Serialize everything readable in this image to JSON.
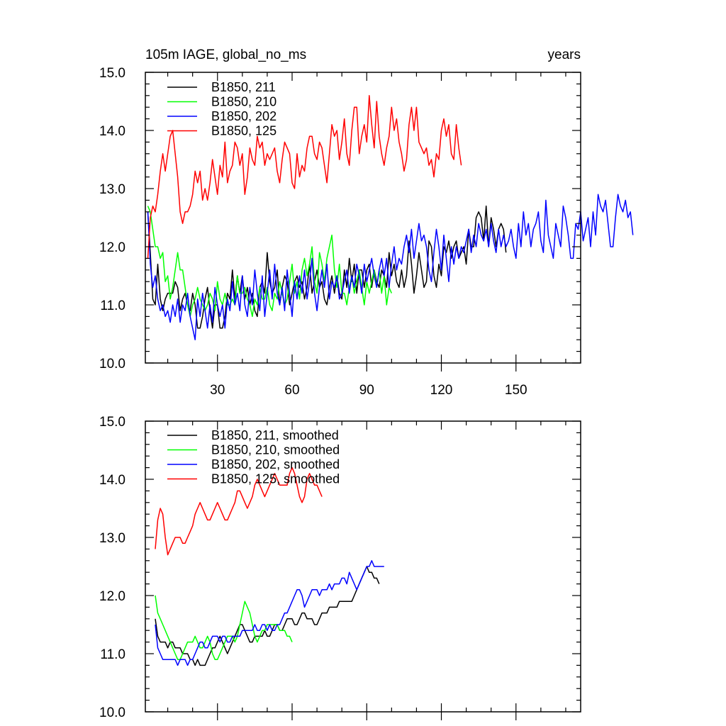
{
  "chart_data": [
    {
      "type": "line",
      "title": "105m IAGE, global_no_ms",
      "right_title": "years",
      "xlabel": "",
      "ylabel": "",
      "xlim": [
        1,
        176
      ],
      "ylim": [
        10.0,
        15.0
      ],
      "x_ticks": [
        30,
        60,
        90,
        120,
        150
      ],
      "y_ticks": [
        "10.0",
        "11.0",
        "12.0",
        "13.0",
        "14.0",
        "15.0"
      ],
      "legend_position": "top-left",
      "grid": false,
      "series": [
        {
          "name": "B1850, 211",
          "color": "#000000",
          "x_start": 2,
          "values": [
            12.6,
            11.9,
            11.1,
            11.0,
            11.7,
            11.1,
            10.9,
            11.1,
            11.2,
            11.2,
            11.2,
            11.4,
            11.3,
            10.9,
            11.1,
            11.2,
            11.0,
            10.9,
            11.2,
            11.0,
            10.6,
            10.6,
            10.8,
            11.1,
            11.3,
            10.9,
            10.6,
            11.0,
            11.0,
            10.6,
            10.6,
            10.8,
            11.2,
            11.1,
            11.6,
            11.1,
            11.5,
            11.2,
            11.5,
            11.1,
            11.3,
            11.0,
            11.2,
            10.9,
            10.8,
            11.3,
            11.4,
            11.2,
            11.9,
            11.4,
            11.2,
            11.3,
            11.6,
            11.0,
            11.3,
            11.5,
            11.4,
            11.0,
            11.2,
            11.4,
            11.5,
            11.3,
            11.4,
            11.1,
            11.3,
            11.7,
            11.2,
            11.4,
            11.6,
            11.3,
            11.4,
            11.1,
            11.0,
            11.3,
            11.5,
            11.2,
            11.5,
            11.2,
            11.1,
            11.6,
            11.3,
            11.8,
            11.4,
            11.7,
            11.2,
            11.6,
            11.6,
            11.3,
            11.6,
            11.7,
            11.3,
            11.6,
            11.4,
            11.3,
            11.6,
            11.5,
            11.3,
            11.9,
            11.5,
            11.7,
            11.4,
            11.3,
            11.6,
            11.3,
            11.5,
            12.1,
            11.7,
            11.2,
            11.5,
            11.9,
            11.6,
            11.3,
            11.4,
            12.1,
            12.0,
            11.5,
            11.3,
            11.7,
            11.5,
            12.0,
            11.9,
            12.1,
            11.8,
            12.0,
            12.1,
            11.8,
            11.9,
            12.0,
            11.7,
            12.3,
            12.0,
            12.0,
            12.5,
            12.6,
            12.5,
            12.1,
            12.7,
            12.0,
            12.5,
            12.3,
            12.0,
            12.3,
            12.4,
            12.3,
            11.9
          ]
        },
        {
          "name": "B1850, 210",
          "color": "#00ff00",
          "x_start": 2,
          "values": [
            12.7,
            12.6,
            12.3,
            12.0,
            12.0,
            11.8,
            11.9,
            11.4,
            11.5,
            11.1,
            11.3,
            11.6,
            11.9,
            11.6,
            11.6,
            11.3,
            11.0,
            10.8,
            11.0,
            11.1,
            11.3,
            11.1,
            11.0,
            10.9,
            11.0,
            11.2,
            11.1,
            10.9,
            11.4,
            11.1,
            11.0,
            11.2,
            11.0,
            11.0,
            11.1,
            11.0,
            11.5,
            11.2,
            11.2,
            11.3,
            11.1,
            11.0,
            10.8,
            11.1,
            11.0,
            11.3,
            11.1,
            11.1,
            11.3,
            11.0,
            10.9,
            11.2,
            11.1,
            11.4,
            11.2,
            11.0,
            11.1,
            11.4,
            11.7,
            11.2,
            11.4,
            11.1,
            11.6,
            11.8,
            11.5,
            11.7,
            12.0,
            11.4,
            11.2,
            11.9,
            11.7,
            11.4,
            11.8,
            12.0,
            12.2,
            11.6,
            11.3,
            11.7,
            11.2,
            11.2,
            11.0,
            11.3,
            11.5,
            11.2,
            11.4,
            11.6,
            11.3,
            11.0,
            11.4,
            11.2,
            11.4,
            11.6,
            11.3,
            11.6,
            11.2,
            11.5,
            11.0,
            11.3,
            11.2
          ]
        },
        {
          "name": "B1850, 202",
          "color": "#0000ff",
          "x_start": 2,
          "values": [
            12.6,
            11.7,
            11.3,
            11.5,
            11.1,
            10.9,
            11.0,
            10.8,
            10.9,
            10.7,
            11.0,
            10.8,
            11.1,
            10.7,
            11.0,
            10.9,
            11.2,
            10.8,
            10.6,
            10.4,
            11.1,
            10.8,
            11.2,
            10.9,
            10.6,
            11.0,
            10.7,
            11.3,
            11.0,
            10.8,
            11.0,
            10.6,
            11.1,
            10.9,
            11.4,
            11.0,
            11.2,
            10.9,
            11.5,
            11.0,
            10.8,
            11.3,
            11.0,
            11.6,
            11.2,
            10.9,
            11.5,
            10.8,
            11.2,
            11.6,
            11.1,
            11.7,
            11.2,
            11.0,
            11.3,
            10.9,
            11.6,
            11.2,
            10.8,
            11.4,
            11.1,
            11.5,
            11.2,
            11.6,
            11.1,
            11.4,
            11.8,
            11.2,
            10.9,
            11.3,
            11.6,
            11.3,
            11.7,
            11.1,
            11.4,
            11.3,
            11.5,
            11.1,
            11.2,
            11.4,
            11.6,
            11.2,
            11.5,
            11.3,
            11.7,
            11.5,
            11.2,
            11.7,
            11.4,
            11.6,
            11.8,
            11.5,
            11.3,
            11.6,
            11.8,
            11.5,
            11.8,
            11.3,
            11.7,
            12.0,
            11.6,
            11.8,
            11.7,
            12.0,
            12.2,
            11.9,
            12.3,
            11.8,
            12.1,
            12.4,
            12.1,
            12.2,
            12.0,
            11.6,
            11.4,
            11.9,
            12.3,
            12.0,
            11.6,
            12.2,
            11.8,
            11.4,
            12.0,
            11.7,
            12.0,
            11.8,
            12.0,
            11.9,
            12.1,
            12.3,
            11.9,
            12.2,
            12.0,
            12.4,
            12.2,
            12.1,
            12.3,
            12.0,
            12.4,
            12.1,
            11.9,
            12.3,
            12.0,
            12.2,
            12.0,
            12.1,
            12.3,
            12.0,
            11.8,
            12.4,
            12.0,
            12.6,
            12.2,
            12.4,
            12.0,
            12.3,
            12.4,
            12.6,
            12.1,
            11.9,
            12.8,
            12.2,
            12.0,
            11.8,
            12.4,
            12.2,
            12.0,
            12.7,
            12.5,
            12.2,
            11.8,
            11.8,
            12.4,
            12.3,
            12.6,
            12.1,
            12.3,
            12.5,
            12.0,
            12.6,
            12.2,
            12.9,
            12.7,
            12.6,
            12.8,
            12.4,
            12.0,
            12.0,
            12.5,
            12.9,
            12.7,
            12.6,
            12.8,
            12.5,
            12.6,
            12.2
          ]
        },
        {
          "name": "B1850, 125",
          "color": "#ff0000",
          "x_start": 2,
          "values": [
            11.8,
            12.5,
            12.7,
            12.6,
            12.9,
            13.3,
            13.6,
            13.3,
            13.6,
            13.9,
            14.0,
            13.6,
            13.2,
            12.6,
            12.4,
            12.6,
            12.6,
            12.7,
            12.9,
            13.3,
            13.1,
            13.3,
            12.8,
            13.0,
            12.8,
            13.1,
            13.5,
            13.2,
            12.9,
            13.4,
            13.2,
            13.8,
            13.1,
            13.3,
            13.4,
            13.8,
            13.7,
            13.4,
            13.6,
            12.9,
            13.2,
            13.7,
            13.5,
            13.4,
            13.9,
            13.7,
            13.8,
            13.4,
            13.6,
            13.5,
            13.6,
            13.7,
            13.3,
            13.1,
            13.5,
            13.8,
            13.7,
            13.6,
            13.1,
            13.0,
            13.6,
            13.2,
            13.4,
            13.3,
            13.7,
            13.9,
            13.9,
            13.6,
            13.5,
            13.8,
            13.7,
            13.4,
            13.1,
            13.6,
            14.1,
            13.9,
            14.0,
            13.5,
            13.8,
            14.2,
            13.6,
            13.4,
            14.0,
            14.4,
            14.4,
            13.6,
            13.9,
            14.1,
            13.8,
            14.6,
            14.1,
            13.7,
            14.5,
            13.9,
            13.6,
            13.4,
            13.7,
            13.9,
            14.4,
            14.0,
            14.2,
            13.8,
            13.6,
            13.3,
            13.5,
            14.1,
            14.4,
            14.0,
            14.4,
            13.8,
            13.7,
            13.6,
            13.7,
            13.4,
            13.5,
            13.2,
            13.6,
            13.5,
            14.0,
            14.2,
            13.9,
            14.1,
            13.6,
            13.5,
            14.1,
            13.7,
            13.4
          ]
        }
      ]
    },
    {
      "type": "line",
      "title": "",
      "xlabel": "",
      "ylabel": "",
      "xlim": [
        1,
        176
      ],
      "ylim": [
        10.0,
        15.0
      ],
      "y_ticks": [
        "10.0",
        "11.0",
        "12.0",
        "13.0",
        "14.0",
        "15.0"
      ],
      "legend_position": "top-left",
      "grid": false,
      "series": [
        {
          "name": "B1850, 211, smoothed",
          "color": "#000000",
          "x_start": 5,
          "values": [
            11.6,
            11.3,
            11.2,
            11.2,
            11.2,
            11.1,
            11.2,
            11.2,
            11.1,
            11.1,
            11.1,
            11.0,
            11.0,
            11.0,
            10.9,
            10.9,
            10.8,
            10.9,
            10.8,
            10.8,
            10.8,
            10.9,
            11.0,
            11.1,
            11.1,
            11.2,
            11.3,
            11.2,
            11.1,
            11.0,
            11.1,
            11.2,
            11.3,
            11.4,
            11.5,
            11.5,
            11.4,
            11.3,
            11.2,
            11.2,
            11.3,
            11.3,
            11.3,
            11.3,
            11.4,
            11.3,
            11.3,
            11.4,
            11.5,
            11.5,
            11.4,
            11.4,
            11.5,
            11.6,
            11.6,
            11.6,
            11.5,
            11.5,
            11.6,
            11.7,
            11.7,
            11.6,
            11.6,
            11.6,
            11.5,
            11.5,
            11.6,
            11.7,
            11.7,
            11.7,
            11.8,
            11.8,
            11.8,
            11.8,
            11.9,
            11.9,
            11.9,
            11.9,
            11.9,
            11.9,
            12.0,
            12.1,
            12.2,
            12.3,
            12.4,
            12.5,
            12.4,
            12.4,
            12.3,
            12.3,
            12.2
          ]
        },
        {
          "name": "B1850, 210, smoothed",
          "color": "#00ff00",
          "x_start": 5,
          "values": [
            12.0,
            11.7,
            11.6,
            11.5,
            11.4,
            11.3,
            11.2,
            11.1,
            11.0,
            10.9,
            10.9,
            11.0,
            11.1,
            11.2,
            11.2,
            11.2,
            11.3,
            11.2,
            11.1,
            11.1,
            11.2,
            11.3,
            11.2,
            11.0,
            10.9,
            10.9,
            11.0,
            11.1,
            11.2,
            11.3,
            11.3,
            11.3,
            11.2,
            11.3,
            11.5,
            11.7,
            11.9,
            11.8,
            11.7,
            11.5,
            11.3,
            11.2,
            11.3,
            11.4,
            11.4,
            11.5,
            11.5,
            11.5,
            11.5,
            11.5,
            11.4,
            11.4,
            11.4,
            11.3,
            11.3,
            11.2
          ]
        },
        {
          "name": "B1850, 202, smoothed",
          "color": "#0000ff",
          "x_start": 5,
          "values": [
            11.5,
            11.1,
            11.0,
            10.9,
            10.9,
            10.9,
            10.9,
            10.9,
            10.9,
            10.8,
            10.9,
            10.9,
            10.9,
            10.8,
            10.9,
            10.9,
            11.0,
            11.1,
            11.2,
            11.2,
            11.1,
            11.1,
            11.2,
            11.3,
            11.3,
            11.3,
            11.2,
            11.3,
            11.3,
            11.2,
            11.2,
            11.3,
            11.3,
            11.3,
            11.3,
            11.4,
            11.4,
            11.4,
            11.4,
            11.4,
            11.5,
            11.4,
            11.4,
            11.5,
            11.5,
            11.4,
            11.5,
            11.4,
            11.4,
            11.5,
            11.5,
            11.6,
            11.7,
            11.7,
            11.8,
            11.9,
            12.0,
            12.1,
            12.1,
            12.0,
            11.8,
            11.9,
            12.0,
            12.1,
            12.1,
            12.1,
            12.0,
            12.1,
            12.1,
            12.1,
            12.2,
            12.1,
            12.2,
            12.2,
            12.2,
            12.3,
            12.3,
            12.2,
            12.4,
            12.3,
            12.2,
            12.1,
            12.2,
            12.3,
            12.4,
            12.5,
            12.5,
            12.6,
            12.5,
            12.5,
            12.5,
            12.5,
            12.5
          ]
        },
        {
          "name": "B1850, 125, smoothed",
          "color": "#ff0000",
          "x_start": 5,
          "values": [
            12.8,
            13.3,
            13.5,
            13.4,
            13.0,
            12.7,
            12.8,
            12.9,
            13.0,
            13.0,
            13.0,
            12.9,
            12.9,
            13.0,
            13.1,
            13.2,
            13.4,
            13.5,
            13.6,
            13.5,
            13.4,
            13.3,
            13.3,
            13.4,
            13.5,
            13.6,
            13.5,
            13.4,
            13.3,
            13.3,
            13.4,
            13.5,
            13.6,
            13.8,
            13.8,
            13.7,
            13.6,
            13.5,
            13.6,
            13.7,
            13.9,
            14.0,
            13.9,
            13.8,
            13.7,
            13.8,
            13.9,
            14.0,
            14.1,
            14.0,
            13.9,
            13.9,
            13.9,
            13.9,
            14.1,
            14.2,
            14.1,
            13.9,
            13.7,
            13.6,
            13.7,
            14.0,
            14.1,
            14.0,
            13.9,
            13.9,
            13.8,
            13.7
          ]
        }
      ]
    }
  ]
}
